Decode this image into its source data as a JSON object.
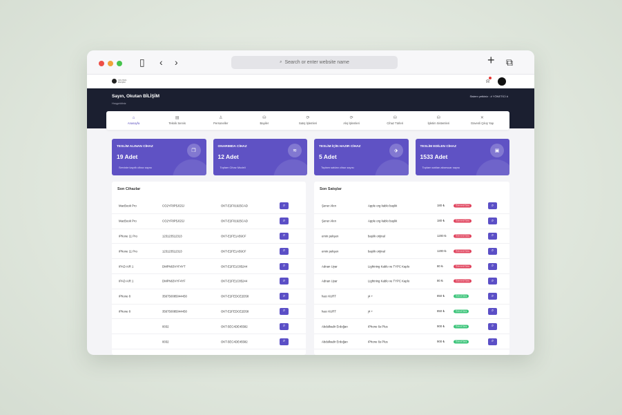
{
  "browser": {
    "url_placeholder": "Search or enter website name",
    "new_tab": "+",
    "tabs_icon": "tabs-icon"
  },
  "app": {
    "logo_text": "OKUTAN BİLİŞİM",
    "greeting": "Sayın, Okutan BİLİŞİM",
    "welcome": "Hoşgeldiniz",
    "authority": "Sistem yetkiniz : # YÖNETİCİ #"
  },
  "nav": [
    {
      "label": "Anasayfa",
      "icon": "⌂",
      "active": true
    },
    {
      "label": "Teknik Servis",
      "icon": "▤",
      "active": false
    },
    {
      "label": "Personeller",
      "icon": "♙",
      "active": false
    },
    {
      "label": "Bayiler",
      "icon": "⛁",
      "active": false
    },
    {
      "label": "Satış İşlemleri",
      "icon": "⟳",
      "active": false
    },
    {
      "label": "Alış İşlemleri",
      "icon": "⟳",
      "active": false
    },
    {
      "label": "Cihaz Türleri",
      "icon": "⛁",
      "active": false
    },
    {
      "label": "İşletim Sistemleri",
      "icon": "⛁",
      "active": false
    },
    {
      "label": "Güvenli Çıkış Yap",
      "icon": "✕",
      "active": false
    }
  ],
  "cards": [
    {
      "title": "TESLİM ALINAN CİHAZ",
      "value": "19 Adet",
      "desc": "Serviste kayıtlı cihaz sayısı",
      "icon": "❒"
    },
    {
      "title": "ONARIMDA CİHAZ",
      "value": "12 Adet",
      "desc": "Toplam Cihaz Modeli",
      "icon": "≋"
    },
    {
      "title": "TESLİM İÇİN HAZIR CİHAZ",
      "value": "5 Adet",
      "desc": "Toplam satılan cihaz sayısı",
      "icon": "⬗"
    },
    {
      "title": "TESLİM EDİLEN CİHAZ",
      "value": "1533 Adet",
      "desc": "Toplam satılan aksesuar sayısı",
      "icon": "▣"
    }
  ],
  "devices": {
    "title": "Son Cihazlar",
    "rows": [
      {
        "model": "MacBook Pro",
        "serial": "CO2YF8P5JG5J",
        "code": "OKT-E2F01925CAD"
      },
      {
        "model": "MacBook Pro",
        "serial": "CO2YF8P5JG5J",
        "code": "OKT-E2F01925CAD"
      },
      {
        "model": "iPhone 11 Pro",
        "serial": "123123512313",
        "code": "OKT-E2FE1A59CF"
      },
      {
        "model": "iPhone 11 Pro",
        "serial": "123123512313",
        "code": "OKT-E2FE1A59CF"
      },
      {
        "model": "IPAD AIR 1",
        "serial": "DMPN63VYF4YT",
        "code": "OKT-E2FE1C85244"
      },
      {
        "model": "IPAD AIR 1",
        "serial": "DMPN63VYF4YF",
        "code": "OKT-E2FE1C85244"
      },
      {
        "model": "iPhone 8",
        "serial": "356750085044450",
        "code": "OKT-E2FEDCE2D58"
      },
      {
        "model": "iPhone 8",
        "serial": "356750085044450",
        "code": "OKT-E2FEDCE2D58"
      },
      {
        "model": "",
        "serial": "0032",
        "code": "OKT-5EC4DE45582"
      },
      {
        "model": "",
        "serial": "0032",
        "code": "OKT-5EC4DE45582"
      }
    ]
  },
  "sales": {
    "title": "Son Satışlar",
    "rows": [
      {
        "customer": "Şener Akın",
        "product": "Apple org kablo başlık",
        "price": "180 ₺",
        "status": "Ödenmedi Satış",
        "status_color": "red"
      },
      {
        "customer": "Şener Akın",
        "product": "Apple org kablo başlık",
        "price": "180 ₺",
        "status": "Ödenmedi Satış",
        "status_color": "red"
      },
      {
        "customer": "emin pekşen",
        "product": "başlık orijinal",
        "price": "1200 ₺",
        "status": "Ödenmedi Satış",
        "status_color": "red"
      },
      {
        "customer": "emin pekşen",
        "product": "başlık orijinal",
        "price": "1200 ₺",
        "status": "Ödenmedi Satış",
        "status_color": "red"
      },
      {
        "customer": "Adnan Uyar",
        "product": "Lightning Kablo ve TYPC Kaplo",
        "price": "80 ₺",
        "status": "Ödenmedi Satış",
        "status_color": "red"
      },
      {
        "customer": "Adnan Uyar",
        "product": "Lightning Kablo ve TYPC Kaplo",
        "price": "80 ₺",
        "status": "Ödenmedi Satış",
        "status_color": "red"
      },
      {
        "customer": "hacı KURT",
        "product": "j4 +",
        "price": "850 ₺",
        "status": "Ödendi Satış",
        "status_color": "green"
      },
      {
        "customer": "hacı KURT",
        "product": "j4 +",
        "price": "850 ₺",
        "status": "Ödendi Satış",
        "status_color": "green"
      },
      {
        "customer": "Abdulkadir Erdoğan",
        "product": "iPhone 6s Plus",
        "price": "900 ₺",
        "status": "Ödendi Satış",
        "status_color": "green"
      },
      {
        "customer": "Abdulkadir Erdoğan",
        "product": "iPhone 6s Plus",
        "price": "900 ₺",
        "status": "Ödendi Satış",
        "status_color": "green"
      }
    ]
  },
  "colors": {
    "primary": "#5f52c4",
    "header_dark": "#1b1f30",
    "badge_red": "#e0445e",
    "badge_green": "#3cc47a"
  }
}
